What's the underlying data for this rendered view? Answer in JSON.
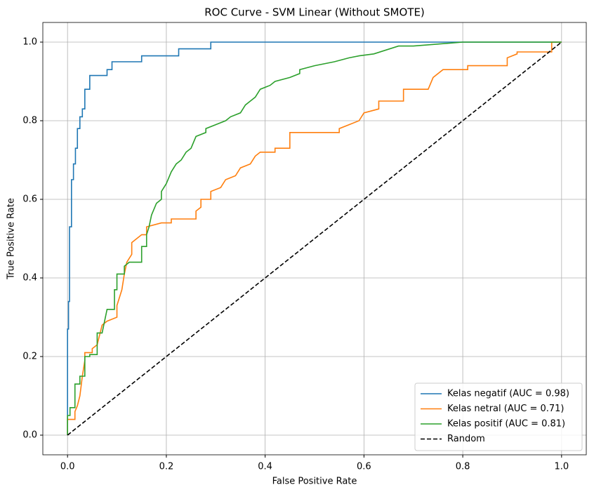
{
  "chart_data": {
    "type": "line",
    "title": "ROC Curve - SVM Linear (Without SMOTE)",
    "x_label": "False Positive Rate",
    "y_label": "True Positive Rate",
    "xlim": [
      -0.05,
      1.05
    ],
    "ylim": [
      -0.05,
      1.05
    ],
    "xticks": [
      {
        "value": 0,
        "label": "0.0"
      },
      0.2,
      0.4,
      0.6,
      0.8,
      {
        "value": 1,
        "label": "1.0"
      }
    ],
    "yticks": [
      {
        "value": 0,
        "label": "0.0"
      },
      0.2,
      0.4,
      0.6,
      0.8,
      {
        "value": 1,
        "label": "1.0"
      }
    ],
    "grid": true,
    "legend": "lower right",
    "series": [
      {
        "name": "Kelas negatif (AUC = 0.98)",
        "color": "#1f77b4",
        "x": [
          0,
          0,
          0.002,
          0.002,
          0.004,
          0.004,
          0.008,
          0.008,
          0.012,
          0.012,
          0.016,
          0.016,
          0.02,
          0.02,
          0.025,
          0.025,
          0.03,
          0.03,
          0.035,
          0.035,
          0.045,
          0.045,
          0.08,
          0.08,
          0.09,
          0.09,
          0.15,
          0.15,
          0.225,
          0.225,
          0.29,
          0.29,
          1
        ],
        "values": [
          0,
          0.27,
          0.27,
          0.34,
          0.34,
          0.53,
          0.53,
          0.65,
          0.65,
          0.69,
          0.69,
          0.73,
          0.73,
          0.78,
          0.78,
          0.81,
          0.81,
          0.83,
          0.83,
          0.88,
          0.88,
          0.915,
          0.915,
          0.93,
          0.93,
          0.95,
          0.95,
          0.965,
          0.965,
          0.983,
          0.983,
          1,
          1
        ]
      },
      {
        "name": "Kelas netral (AUC = 0.71)",
        "color": "#ff7f0e",
        "x": [
          0,
          0,
          0.015,
          0.015,
          0.02,
          0.025,
          0.03,
          0.035,
          0.035,
          0.05,
          0.05,
          0.06,
          0.07,
          0.08,
          0.1,
          0.1,
          0.11,
          0.115,
          0.12,
          0.13,
          0.13,
          0.14,
          0.15,
          0.16,
          0.16,
          0.19,
          0.21,
          0.21,
          0.26,
          0.26,
          0.27,
          0.27,
          0.29,
          0.29,
          0.31,
          0.32,
          0.34,
          0.35,
          0.37,
          0.38,
          0.39,
          0.42,
          0.42,
          0.45,
          0.45,
          0.55,
          0.55,
          0.57,
          0.59,
          0.6,
          0.63,
          0.63,
          0.68,
          0.68,
          0.73,
          0.74,
          0.76,
          0.81,
          0.81,
          0.89,
          0.89,
          0.91,
          0.91,
          0.98,
          0.98,
          1
        ],
        "values": [
          0,
          0.04,
          0.04,
          0.06,
          0.075,
          0.1,
          0.15,
          0.19,
          0.21,
          0.21,
          0.22,
          0.23,
          0.28,
          0.29,
          0.3,
          0.33,
          0.37,
          0.41,
          0.44,
          0.46,
          0.49,
          0.5,
          0.51,
          0.51,
          0.53,
          0.54,
          0.54,
          0.55,
          0.55,
          0.57,
          0.58,
          0.6,
          0.6,
          0.62,
          0.63,
          0.65,
          0.66,
          0.68,
          0.69,
          0.71,
          0.72,
          0.72,
          0.73,
          0.73,
          0.77,
          0.77,
          0.78,
          0.79,
          0.8,
          0.82,
          0.83,
          0.85,
          0.85,
          0.88,
          0.88,
          0.91,
          0.93,
          0.93,
          0.94,
          0.94,
          0.96,
          0.97,
          0.975,
          0.975,
          1,
          1
        ]
      },
      {
        "name": "Kelas positif (AUC = 0.81)",
        "color": "#2ca02c",
        "x": [
          0,
          0,
          0.005,
          0.005,
          0.015,
          0.015,
          0.025,
          0.025,
          0.035,
          0.035,
          0.045,
          0.045,
          0.06,
          0.06,
          0.07,
          0.075,
          0.08,
          0.095,
          0.095,
          0.1,
          0.1,
          0.115,
          0.115,
          0.125,
          0.15,
          0.15,
          0.16,
          0.16,
          0.165,
          0.17,
          0.18,
          0.19,
          0.19,
          0.2,
          0.21,
          0.22,
          0.23,
          0.24,
          0.25,
          0.26,
          0.28,
          0.28,
          0.3,
          0.32,
          0.33,
          0.35,
          0.36,
          0.37,
          0.38,
          0.39,
          0.41,
          0.42,
          0.45,
          0.47,
          0.47,
          0.5,
          0.54,
          0.57,
          0.59,
          0.62,
          0.67,
          0.7,
          0.8,
          1
        ],
        "values": [
          0,
          0.05,
          0.05,
          0.07,
          0.07,
          0.13,
          0.13,
          0.15,
          0.15,
          0.2,
          0.2,
          0.205,
          0.205,
          0.26,
          0.26,
          0.29,
          0.32,
          0.32,
          0.37,
          0.37,
          0.41,
          0.41,
          0.43,
          0.44,
          0.44,
          0.48,
          0.48,
          0.51,
          0.53,
          0.56,
          0.59,
          0.6,
          0.62,
          0.64,
          0.67,
          0.69,
          0.7,
          0.72,
          0.73,
          0.76,
          0.77,
          0.78,
          0.79,
          0.8,
          0.81,
          0.82,
          0.84,
          0.85,
          0.86,
          0.88,
          0.89,
          0.9,
          0.91,
          0.92,
          0.93,
          0.94,
          0.95,
          0.96,
          0.965,
          0.97,
          0.99,
          0.99,
          1,
          1
        ]
      },
      {
        "name": "Random",
        "color": "#000000",
        "linestyle": "dashed",
        "x": [
          0,
          1
        ],
        "values": [
          0,
          1
        ]
      }
    ]
  }
}
